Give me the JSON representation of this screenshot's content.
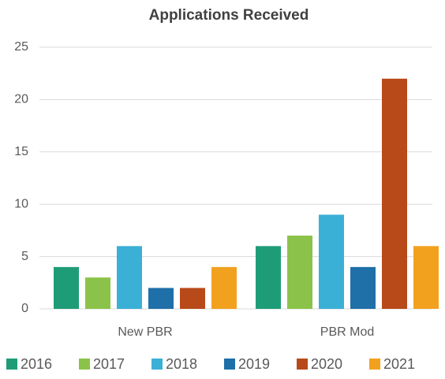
{
  "chart_data": {
    "type": "bar",
    "title": "Applications Received",
    "categories": [
      "New PBR",
      "PBR Mod"
    ],
    "series": [
      {
        "name": "2016",
        "color": "#1e9c78",
        "values": [
          4,
          6
        ]
      },
      {
        "name": "2017",
        "color": "#8bc34a",
        "values": [
          3,
          7
        ]
      },
      {
        "name": "2018",
        "color": "#3bb0d6",
        "values": [
          6,
          9
        ]
      },
      {
        "name": "2019",
        "color": "#1f6fa8",
        "values": [
          2,
          4
        ]
      },
      {
        "name": "2020",
        "color": "#b84a1a",
        "values": [
          2,
          22
        ]
      },
      {
        "name": "2021",
        "color": "#f2a11f",
        "values": [
          4,
          6
        ]
      }
    ],
    "ylim": [
      0,
      25
    ],
    "yticks": [
      0,
      5,
      10,
      15,
      20,
      25
    ],
    "grid": true,
    "legend": "bottom"
  }
}
